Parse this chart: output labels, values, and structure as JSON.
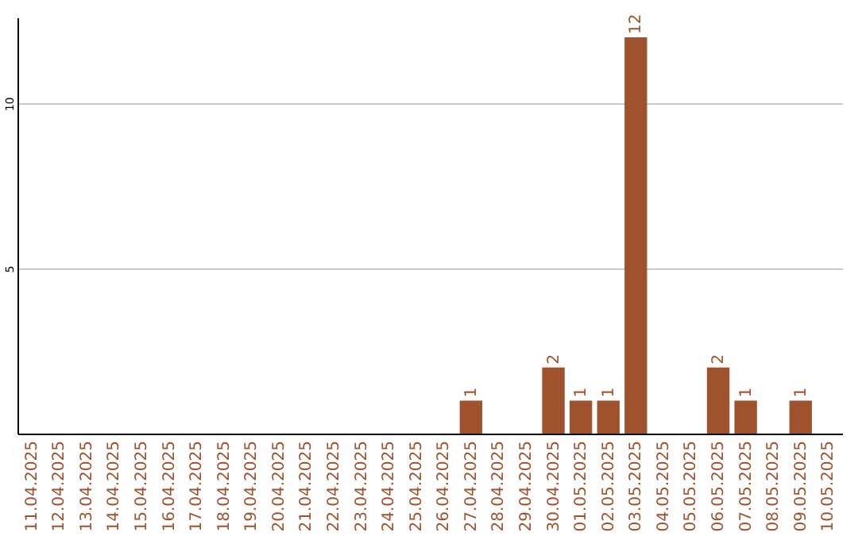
{
  "chart_data": {
    "type": "bar",
    "categories": [
      "11.04.2025",
      "12.04.2025",
      "13.04.2025",
      "14.04.2025",
      "15.04.2025",
      "16.04.2025",
      "17.04.2025",
      "18.04.2025",
      "19.04.2025",
      "20.04.2025",
      "21.04.2025",
      "22.04.2025",
      "23.04.2025",
      "24.04.2025",
      "25.04.2025",
      "26.04.2025",
      "27.04.2025",
      "28.04.2025",
      "29.04.2025",
      "30.04.2025",
      "01.05.2025",
      "02.05.2025",
      "03.05.2025",
      "04.05.2025",
      "05.05.2025",
      "06.05.2025",
      "07.05.2025",
      "08.05.2025",
      "09.05.2025",
      "10.05.2025"
    ],
    "values": [
      0,
      0,
      0,
      0,
      0,
      0,
      0,
      0,
      0,
      0,
      0,
      0,
      0,
      0,
      0,
      0,
      1,
      0,
      0,
      2,
      1,
      1,
      12,
      0,
      0,
      2,
      1,
      0,
      1,
      0
    ],
    "value_labels": [
      null,
      null,
      null,
      null,
      null,
      null,
      null,
      null,
      null,
      null,
      null,
      null,
      null,
      null,
      null,
      null,
      "1",
      null,
      null,
      "2",
      "1",
      "1",
      "12",
      null,
      null,
      "2",
      "1",
      null,
      "1",
      null
    ],
    "color": "#a0522d",
    "ylim": [
      0,
      12.6
    ],
    "yticks": [
      5,
      10
    ],
    "grid": "y"
  }
}
